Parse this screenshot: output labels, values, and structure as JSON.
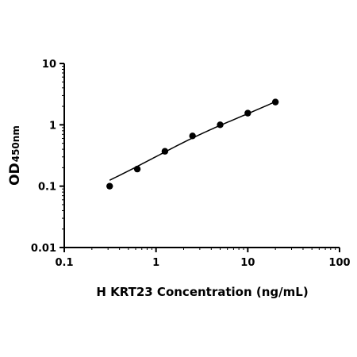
{
  "chart_data": {
    "type": "scatter",
    "title": "",
    "xlabel": "H KRT23 Concentration (ng/mL)",
    "ylabel_main": "OD",
    "ylabel_sub": "450nm",
    "xscale": "log",
    "yscale": "log",
    "xlim": [
      0.1,
      100
    ],
    "ylim": [
      0.01,
      10
    ],
    "x_ticks": [
      0.1,
      1,
      10,
      100
    ],
    "x_tick_labels": [
      "0.1",
      "1",
      "10",
      "100"
    ],
    "y_ticks": [
      0.01,
      0.1,
      1,
      10
    ],
    "y_tick_labels": [
      "0.01",
      "0.1",
      "1",
      "10"
    ],
    "grid": false,
    "legend": "none",
    "series": [
      {
        "points": [
          {
            "x": 0.3125,
            "y": 0.1
          },
          {
            "x": 0.625,
            "y": 0.19
          },
          {
            "x": 1.25,
            "y": 0.37
          },
          {
            "x": 2.5,
            "y": 0.66
          },
          {
            "x": 5,
            "y": 1.0
          },
          {
            "x": 10,
            "y": 1.55
          },
          {
            "x": 20,
            "y": 2.35
          }
        ],
        "fit_curve": [
          {
            "x": 0.3125,
            "y": 0.125
          },
          {
            "x": 0.625,
            "y": 0.21
          },
          {
            "x": 1.25,
            "y": 0.36
          },
          {
            "x": 2.5,
            "y": 0.61
          },
          {
            "x": 5,
            "y": 0.98
          },
          {
            "x": 10,
            "y": 1.52
          },
          {
            "x": 20,
            "y": 2.38
          }
        ]
      }
    ]
  }
}
